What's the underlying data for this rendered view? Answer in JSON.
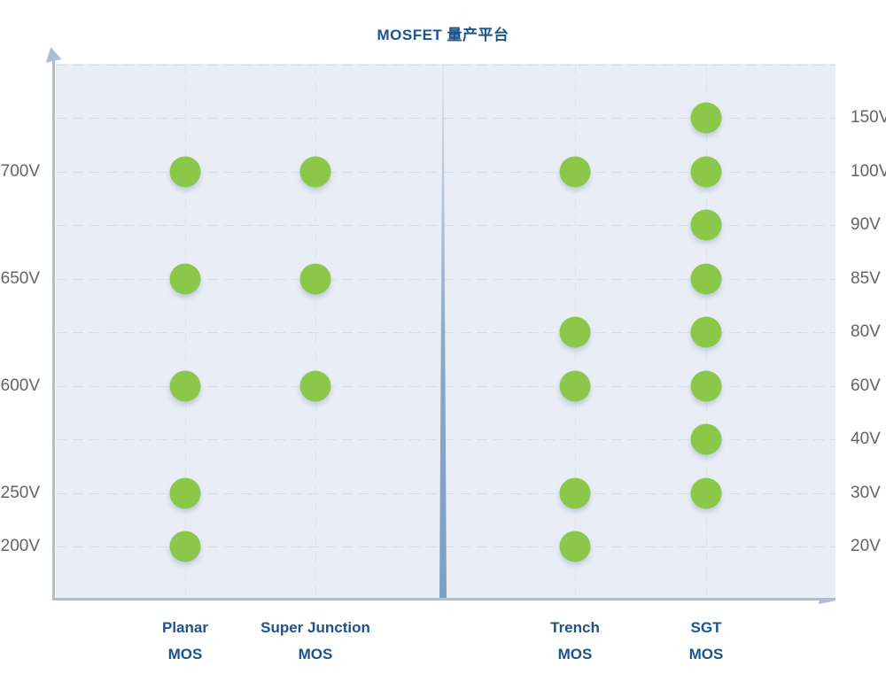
{
  "title": "MOSFET 量产平台",
  "chart_data": {
    "type": "scatter",
    "title": "MOSFET 量产平台",
    "grid": "dashed",
    "legend": "none",
    "dot_color": "#8bc84a",
    "left_axis": {
      "side": "left",
      "ticks": [
        {
          "label": "700V",
          "row": 2
        },
        {
          "label": "650V",
          "row": 4
        },
        {
          "label": "600V",
          "row": 6
        },
        {
          "label": "250V",
          "row": 8
        },
        {
          "label": "200V",
          "row": 9
        }
      ]
    },
    "right_axis": {
      "side": "right",
      "ticks": [
        {
          "label": "150V",
          "row": 1
        },
        {
          "label": "100V",
          "row": 2
        },
        {
          "label": "90V",
          "row": 3
        },
        {
          "label": "85V",
          "row": 4
        },
        {
          "label": "80V",
          "row": 5
        },
        {
          "label": "60V",
          "row": 6
        },
        {
          "label": "40V",
          "row": 7
        },
        {
          "label": "30V",
          "row": 8
        },
        {
          "label": "20V",
          "row": 9
        }
      ]
    },
    "categories": [
      {
        "label_line1": "Planar",
        "label_line2": "MOS",
        "column": 0,
        "half": "left",
        "platform_voltages": [
          "700V",
          "650V",
          "600V",
          "250V",
          "200V"
        ]
      },
      {
        "label_line1": "Super Junction",
        "label_line2": "MOS",
        "column": 1,
        "half": "left",
        "platform_voltages": [
          "700V",
          "650V",
          "600V"
        ]
      },
      {
        "label_line1": "Trench",
        "label_line2": "MOS",
        "column": 2,
        "half": "right",
        "platform_voltages": [
          "100V",
          "80V",
          "60V",
          "30V",
          "20V"
        ]
      },
      {
        "label_line1": "SGT",
        "label_line2": "MOS",
        "column": 3,
        "half": "right",
        "platform_voltages": [
          "150V",
          "100V",
          "90V",
          "85V",
          "80V",
          "60V",
          "40V",
          "30V"
        ]
      }
    ]
  },
  "colors": {
    "title_text": "#1a5390",
    "category_text": "#1a5390",
    "tick_text": "#636363",
    "plot_background": "#e9eef6",
    "gridline": "#d3deeb",
    "axis": "#abc0d7",
    "dot": "#8bc84a",
    "divider": "#7fa0c3"
  }
}
